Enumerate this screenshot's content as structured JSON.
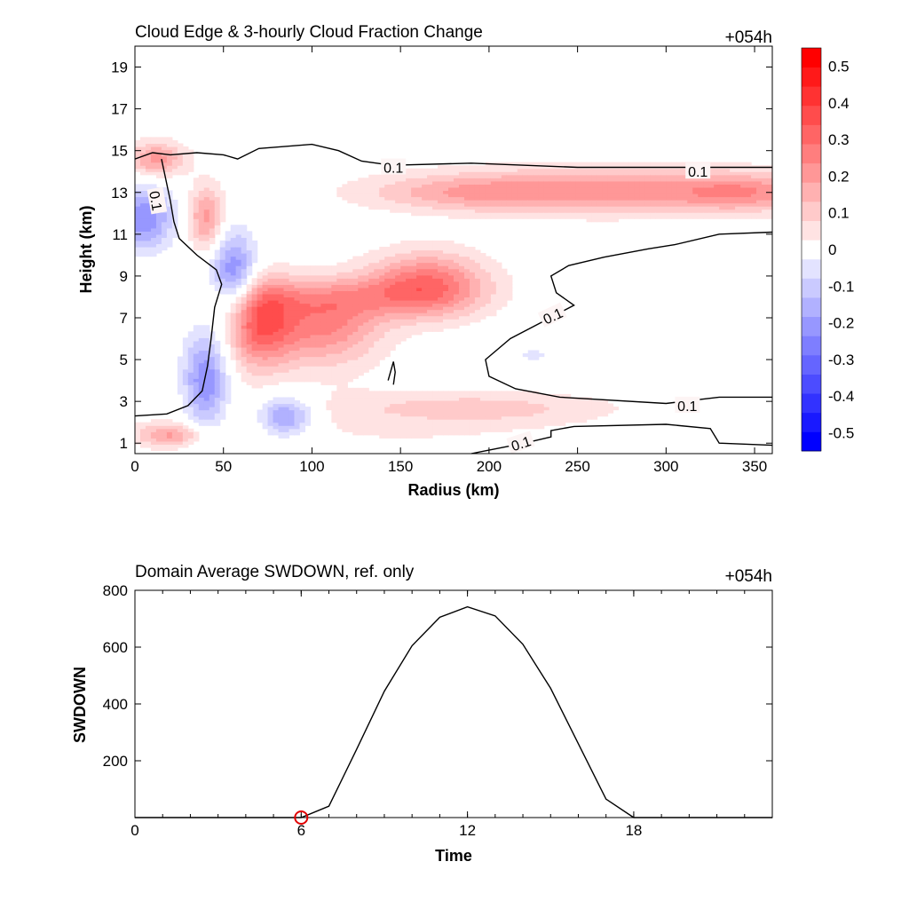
{
  "chart_data": [
    {
      "type": "heatmap",
      "title": "Cloud Edge & 3-hourly Cloud Fraction Change",
      "time_label": "+054h",
      "xlabel": "Radius (km)",
      "ylabel": "Height (km)",
      "xlim": [
        0,
        360
      ],
      "ylim": [
        0.5,
        20
      ],
      "x_ticks": [
        0,
        50,
        100,
        150,
        200,
        250,
        300,
        350
      ],
      "y_ticks": [
        1,
        3,
        5,
        7,
        9,
        11,
        13,
        15,
        17,
        19
      ],
      "colorbar": {
        "levels": [
          -0.55,
          -0.5,
          -0.45,
          -0.4,
          -0.35,
          -0.3,
          -0.25,
          -0.2,
          -0.15,
          -0.1,
          -0.05,
          0.05,
          0.1,
          0.15,
          0.2,
          0.25,
          0.3,
          0.35,
          0.4,
          0.45,
          0.5,
          0.55
        ],
        "tick_labels": [
          "0.5",
          "0.4",
          "0.3",
          "0.2",
          "0.1",
          "0",
          "-0.1",
          "-0.2",
          "-0.3",
          "-0.4",
          "-0.5"
        ],
        "tick_values": [
          0.5,
          0.4,
          0.3,
          0.2,
          0.1,
          0,
          -0.1,
          -0.2,
          -0.3,
          -0.4,
          -0.5
        ],
        "min_color": "#0000ff",
        "mid_color": "#ffffff",
        "max_color": "#ff0000"
      },
      "features": [
        {
          "name": "upper outflow layer increase",
          "x": 270,
          "y": 13.1,
          "sx": 75,
          "sy": 0.8,
          "value": 0.22
        },
        {
          "name": "upper outflow layer increase (west)",
          "x": 185,
          "y": 13.0,
          "sx": 40,
          "sy": 0.6,
          "value": 0.1
        },
        {
          "name": "upper outflow layer increase (east)",
          "x": 345,
          "y": 13.0,
          "sx": 25,
          "sy": 0.6,
          "value": 0.13
        },
        {
          "name": "near-center upper increase",
          "x": 12,
          "y": 14.6,
          "sx": 12,
          "sy": 0.6,
          "value": 0.22
        },
        {
          "name": "eyewall upper increase",
          "x": 40,
          "y": 11.8,
          "sx": 7,
          "sy": 1.1,
          "value": 0.22
        },
        {
          "name": "mid-level increase",
          "x": 70,
          "y": 6.8,
          "sx": 14,
          "sy": 1.5,
          "value": 0.32
        },
        {
          "name": "mid-level increase",
          "x": 108,
          "y": 6.6,
          "sx": 22,
          "sy": 1.3,
          "value": 0.24
        },
        {
          "name": "mid-level increase",
          "x": 165,
          "y": 8.6,
          "sx": 24,
          "sy": 1.1,
          "value": 0.29
        },
        {
          "name": "mid-level increase band",
          "x": 115,
          "y": 8.0,
          "sx": 45,
          "sy": 0.7,
          "value": 0.12
        },
        {
          "name": "low-level increase",
          "x": 20,
          "y": 1.4,
          "sx": 14,
          "sy": 0.4,
          "value": 0.19
        },
        {
          "name": "low-level increase",
          "x": 195,
          "y": 2.7,
          "sx": 50,
          "sy": 0.5,
          "value": 0.09
        },
        {
          "name": "broad low-level increase",
          "x": 150,
          "y": 2.0,
          "sx": 90,
          "sy": 1.5,
          "value": 0.05
        },
        {
          "name": "near-center decrease",
          "x": 5,
          "y": 11.8,
          "sx": 12,
          "sy": 1.1,
          "value": -0.25
        },
        {
          "name": "eyewall decrease",
          "x": 56,
          "y": 9.1,
          "sx": 9,
          "sy": 1.4,
          "value": -0.28
        },
        {
          "name": "eyewall decrease (lower)",
          "x": 40,
          "y": 4.0,
          "sx": 9,
          "sy": 1.7,
          "value": -0.26
        },
        {
          "name": "low-level decrease",
          "x": 85,
          "y": 2.3,
          "sx": 11,
          "sy": 0.7,
          "value": -0.24
        },
        {
          "name": "weak decrease",
          "x": 225,
          "y": 5.2,
          "sx": 20,
          "sy": 0.6,
          "value": -0.06
        }
      ],
      "contour": {
        "level_label": "0.1",
        "lines": [
          {
            "points": [
              [
                0,
                14.6
              ],
              [
                10,
                14.9
              ],
              [
                20,
                14.8
              ],
              [
                35,
                14.9
              ],
              [
                50,
                14.8
              ],
              [
                58,
                14.6
              ],
              [
                70,
                15.1
              ],
              [
                100,
                15.3
              ],
              [
                115,
                15.0
              ],
              [
                128,
                14.5
              ],
              [
                145,
                14.3
              ],
              [
                190,
                14.4
              ],
              [
                250,
                14.2
              ],
              [
                310,
                14.2
              ],
              [
                360,
                14.2
              ]
            ]
          },
          {
            "points": [
              [
                15,
                14.6
              ],
              [
                17,
                13.8
              ],
              [
                20,
                12.6
              ],
              [
                22,
                11.6
              ],
              [
                25,
                10.8
              ],
              [
                35,
                10.0
              ],
              [
                46,
                9.3
              ],
              [
                49,
                8.6
              ],
              [
                45,
                7.5
              ],
              [
                43,
                6.0
              ],
              [
                41,
                4.7
              ],
              [
                38,
                3.5
              ],
              [
                30,
                2.8
              ],
              [
                18,
                2.4
              ],
              [
                0,
                2.3
              ]
            ]
          },
          {
            "points": [
              [
                360,
                11.1
              ],
              [
                330,
                11.0
              ],
              [
                305,
                10.5
              ],
              [
                290,
                10.3
              ],
              [
                265,
                9.9
              ],
              [
                245,
                9.5
              ],
              [
                235,
                9.0
              ],
              [
                238,
                8.2
              ],
              [
                248,
                7.6
              ],
              [
                230,
                6.8
              ],
              [
                212,
                6.0
              ],
              [
                198,
                5.0
              ],
              [
                200,
                4.2
              ],
              [
                215,
                3.6
              ],
              [
                240,
                3.2
              ],
              [
                300,
                2.9
              ],
              [
                330,
                3.2
              ],
              [
                360,
                3.2
              ]
            ]
          },
          {
            "points": [
              [
                190,
                0.5
              ],
              [
                220,
                1.0
              ],
              [
                235,
                1.3
              ],
              [
                235,
                1.6
              ],
              [
                248,
                1.8
              ],
              [
                300,
                1.9
              ],
              [
                325,
                1.7
              ],
              [
                330,
                1.0
              ],
              [
                360,
                0.9
              ]
            ]
          },
          {
            "points": [
              [
                143,
                4.0
              ],
              [
                145,
                4.6
              ],
              [
                146,
                4.9
              ],
              [
                147,
                4.4
              ],
              [
                146,
                3.8
              ]
            ]
          }
        ],
        "labels": [
          {
            "text": "0.1",
            "x": 146,
            "y": 14.2,
            "angle": 0
          },
          {
            "text": "0.1",
            "x": 318,
            "y": 14.0,
            "angle": 0
          },
          {
            "text": "0.1",
            "x": 12,
            "y": 12.6,
            "angle": 80
          },
          {
            "text": "0.1",
            "x": 236,
            "y": 7.1,
            "angle": -25
          },
          {
            "text": "0.1",
            "x": 312,
            "y": 2.8,
            "angle": 0
          },
          {
            "text": "0.1",
            "x": 218,
            "y": 1.0,
            "angle": -18
          }
        ]
      }
    },
    {
      "type": "line",
      "title": "Domain Average SWDOWN, ref. only",
      "time_label": "+054h",
      "xlabel": "Time",
      "ylabel": "SWDOWN",
      "xlim": [
        0,
        23
      ],
      "ylim": [
        0,
        800
      ],
      "x_ticks": [
        0,
        6,
        12,
        18
      ],
      "y_ticks": [
        200,
        400,
        600,
        800
      ],
      "series": [
        {
          "x": [
            0,
            1,
            2,
            3,
            4,
            5,
            6,
            7,
            8,
            9,
            10,
            11,
            12,
            13,
            14,
            15,
            16,
            17,
            18,
            19,
            20,
            21,
            22,
            23
          ],
          "values": [
            0,
            0,
            0,
            0,
            0,
            0,
            0,
            40,
            240,
            445,
            605,
            705,
            742,
            710,
            610,
            455,
            260,
            65,
            0,
            0,
            0,
            0,
            0,
            0
          ]
        }
      ],
      "marker": {
        "x": 6,
        "y": 0,
        "color": "#e00000"
      }
    }
  ]
}
